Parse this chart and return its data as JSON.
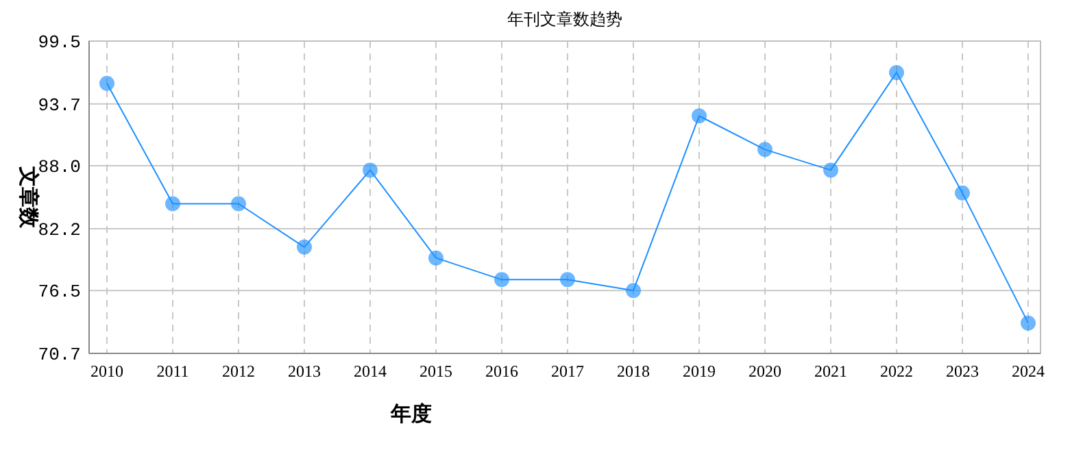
{
  "chart_data": {
    "type": "line",
    "title": "年刊文章数趋势",
    "xlabel": "年度",
    "ylabel": "文章数",
    "categories": [
      "2010",
      "2011",
      "2012",
      "2013",
      "2014",
      "2015",
      "2016",
      "2017",
      "2018",
      "2019",
      "2020",
      "2021",
      "2022",
      "2023",
      "2024"
    ],
    "series": [
      {
        "color": "#1e90ff",
        "values": [
          95.6,
          84.5,
          84.5,
          80.5,
          87.6,
          79.5,
          77.5,
          77.5,
          76.5,
          92.6,
          89.5,
          87.6,
          96.6,
          85.5,
          73.5
        ]
      }
    ],
    "ylim": [
      70.7,
      99.5
    ],
    "yticks": [
      70.7,
      76.5,
      82.2,
      {
        "value": 88,
        "label": "88.0"
      },
      93.7,
      99.5
    ],
    "grid": true,
    "marker": "circle",
    "line_style": "solid"
  }
}
